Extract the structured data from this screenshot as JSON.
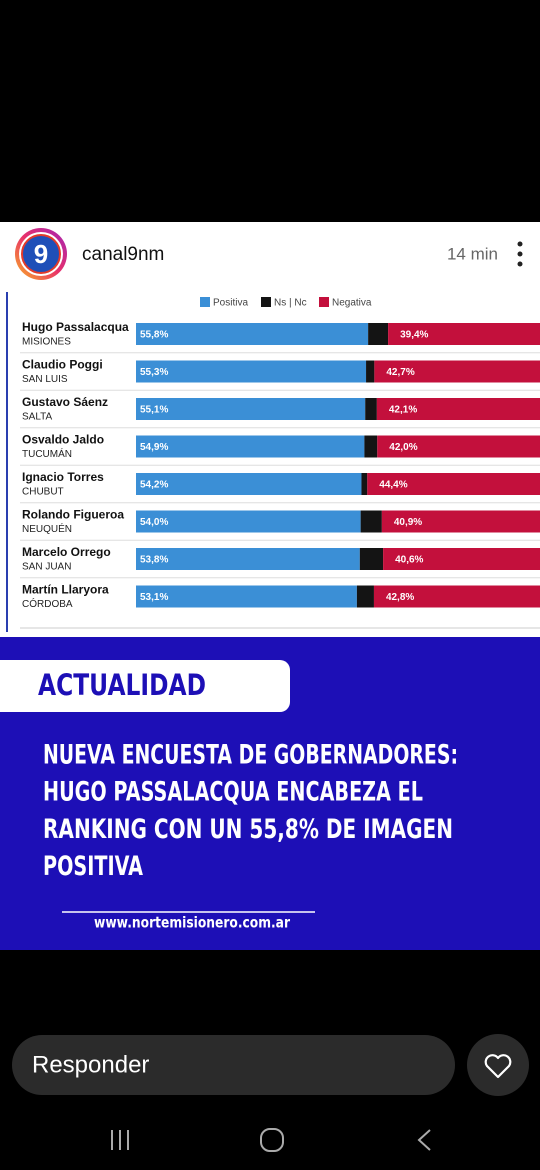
{
  "header": {
    "avatar_text": "9",
    "username": "canal9nm",
    "time": "14 min"
  },
  "chart_data": {
    "type": "bar",
    "orientation": "horizontal",
    "stacked": true,
    "categories": [
      "Hugo Passalacqua",
      "Claudio Poggi",
      "Gustavo Sáenz",
      "Osvaldo Jaldo",
      "Ignacio Torres",
      "Rolando Figueroa",
      "Marcelo Orrego",
      "Martín Llaryora"
    ],
    "subcategories": [
      "MISIONES",
      "SAN LUIS",
      "SALTA",
      "TUCUMÁN",
      "CHUBUT",
      "NEUQUÉN",
      "SAN JUAN",
      "CÓRDOBA"
    ],
    "series": [
      {
        "name": "Positiva",
        "color": "#3b8fd6",
        "values": [
          55.8,
          55.3,
          55.1,
          54.9,
          54.2,
          54.0,
          53.8,
          53.1
        ],
        "value_labels": [
          "55,8%",
          "55,3%",
          "55,1%",
          "54,9%",
          "54,2%",
          "54,0%",
          "53,8%",
          "53,1%"
        ]
      },
      {
        "name": "Ns | Nc",
        "color": "#141414",
        "values": [
          4.8,
          2.0,
          2.8,
          3.1,
          1.4,
          5.1,
          5.6,
          4.1
        ]
      },
      {
        "name": "Negativa",
        "color": "#c3103c",
        "values": [
          39.4,
          42.7,
          42.1,
          42.0,
          44.4,
          40.9,
          40.6,
          42.8
        ],
        "value_labels": [
          "39,4%",
          "42,7%",
          "42,1%",
          "42,0%",
          "44,4%",
          "40,9%",
          "40,6%",
          "42,8%"
        ]
      }
    ]
  },
  "post": {
    "section": "ACTUALIDAD",
    "headline_lines": [
      "NUEVA ENCUESTA DE GOBERNADORES:",
      "HUGO PASSALACQUA ENCABEZA EL",
      "RANKING CON UN 55,8% DE IMAGEN",
      "POSITIVA"
    ],
    "url": "www.nortemisionero.com.ar"
  },
  "reply": {
    "placeholder": "Responder"
  }
}
